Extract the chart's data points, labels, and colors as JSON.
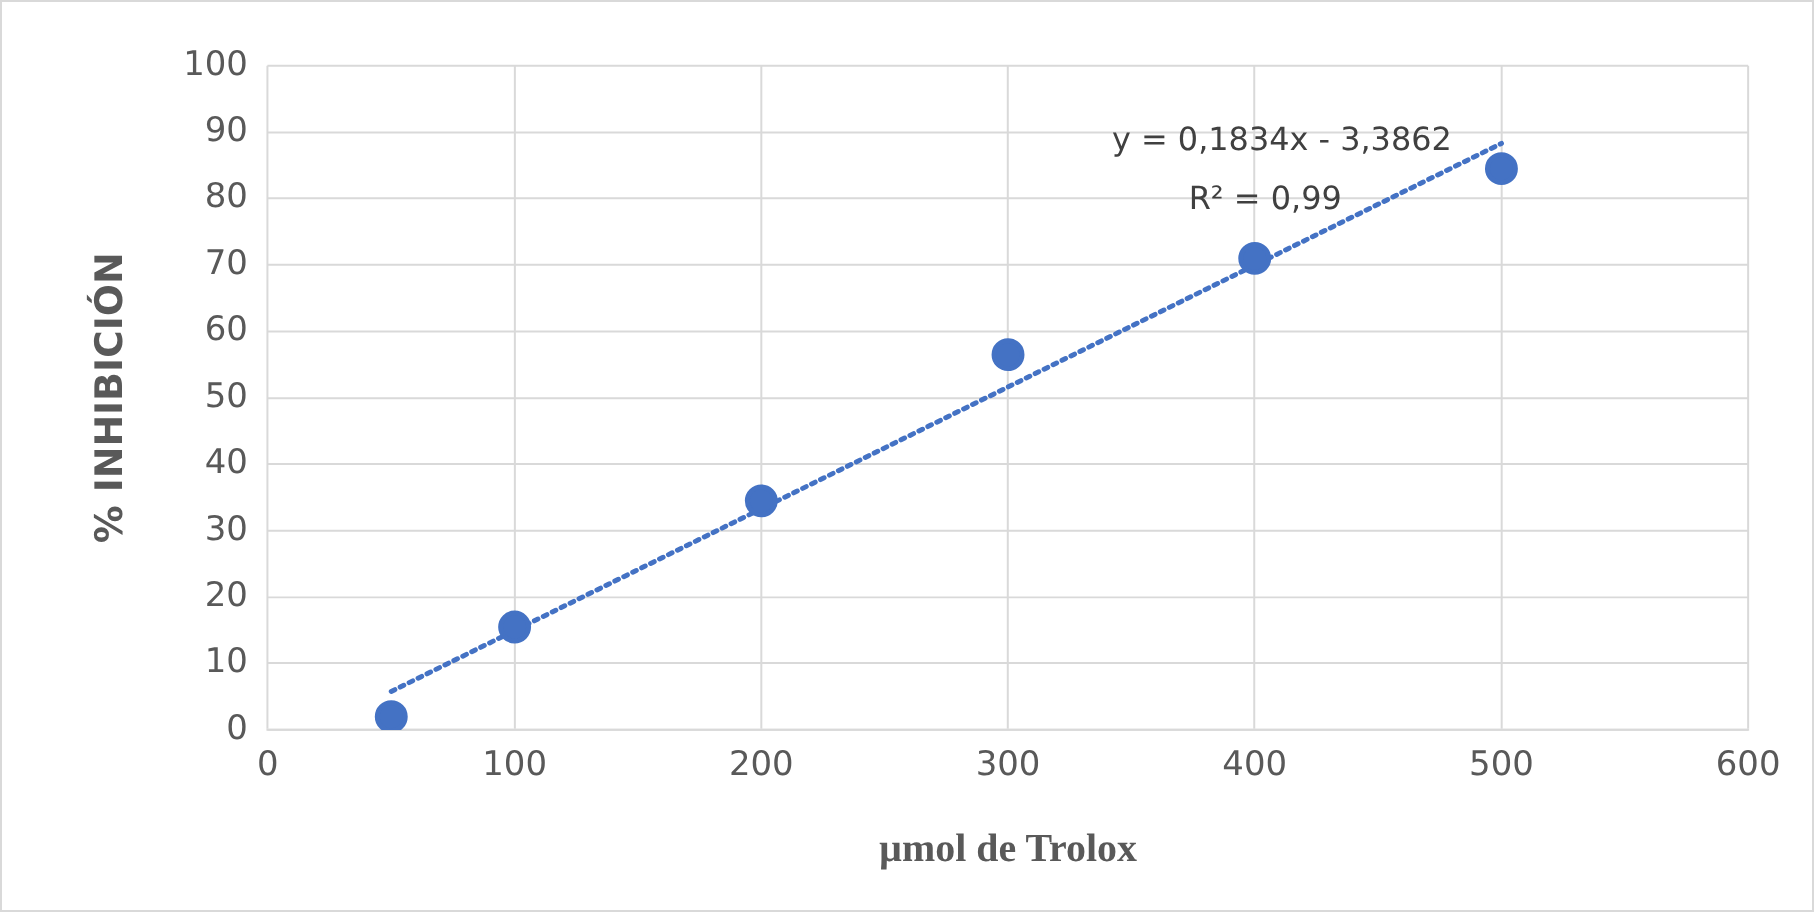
{
  "chart_data": {
    "type": "scatter",
    "xlabel": "µmol de Trolox",
    "ylabel": "% INHIBICIÓN",
    "xlim": [
      0,
      600
    ],
    "xticks": [
      0,
      100,
      200,
      300,
      400,
      500,
      600
    ],
    "ylim": [
      0,
      100
    ],
    "yticks": [
      0,
      10,
      20,
      30,
      40,
      50,
      60,
      70,
      80,
      90,
      100
    ],
    "grid": true,
    "legend": false,
    "marker": "circle",
    "series": [
      {
        "type": "scatter",
        "color": "#4472c4",
        "x": [
          50,
          100,
          200,
          300,
          400,
          500
        ],
        "values": [
          2,
          15.5,
          34.5,
          56.5,
          71,
          84.5
        ]
      },
      {
        "type": "line",
        "color": "#4472c4",
        "line_style": "dotted",
        "marker": "none",
        "x": [
          50,
          500
        ],
        "values": [
          5.8,
          88.3
        ]
      }
    ],
    "annotations": [
      "y = 0,1834x - 3,3862",
      "R² = 0,99"
    ]
  }
}
